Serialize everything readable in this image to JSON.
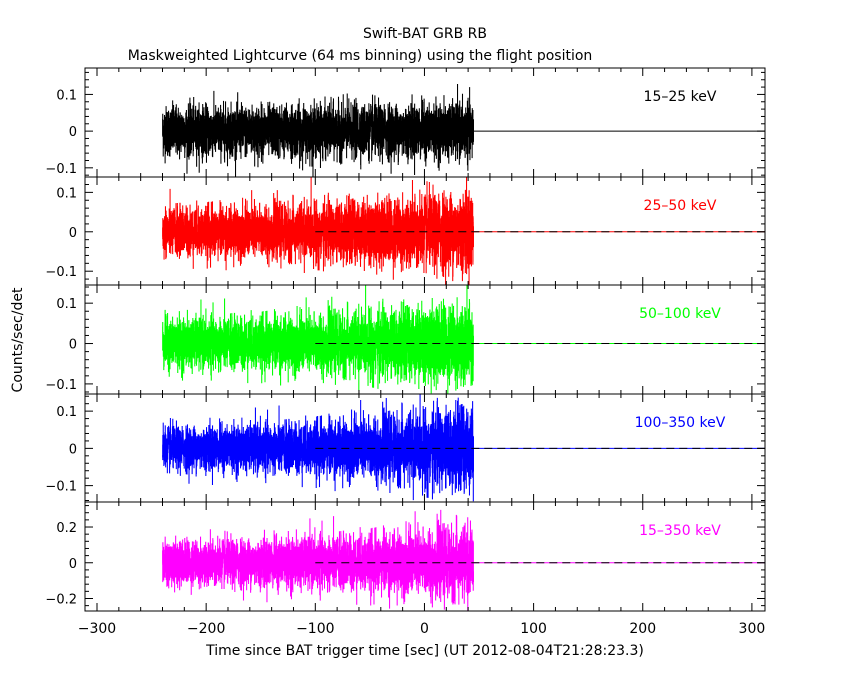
{
  "chart_data": {
    "type": "line",
    "title": "Swift-BAT GRB RB",
    "subtitle": "Maskweighted Lightcurve (64 ms binning) using the flight position",
    "xlabel": "Time since BAT trigger time [sec] (UT 2012-08-04T21:28:23.3)",
    "ylabel": "Counts/sec/det",
    "xlim": [
      -311,
      312
    ],
    "x_ticks": [
      -300,
      -200,
      -100,
      0,
      100,
      200,
      300
    ],
    "x_tick_labels": [
      "−300",
      "−200",
      "−100",
      "0",
      "100",
      "200",
      "300"
    ],
    "bin_size_sec": 0.064,
    "data_start_sec": -240,
    "data_end_sec": 45,
    "reference_dashed_from_sec": -100,
    "panels": [
      {
        "name": "15-25 keV",
        "label": "15–25 keV",
        "color": "#000000",
        "ylim": [
          -0.125,
          0.172
        ],
        "yticks": [
          -0.1,
          0,
          0.1
        ],
        "ytick_labels": [
          "−0.1",
          "0",
          "0.1"
        ],
        "noise_sigma_start": 0.033,
        "noise_sigma_end": 0.036,
        "dashed_reference": false
      },
      {
        "name": "25-50 keV",
        "label": "25–50 keV",
        "color": "#ff0000",
        "ylim": [
          -0.135,
          0.139
        ],
        "yticks": [
          -0.1,
          0,
          0.1
        ],
        "ytick_labels": [
          "−0.1",
          "0",
          "0.1"
        ],
        "noise_sigma_start": 0.03,
        "noise_sigma_end": 0.05,
        "dashed_reference": true
      },
      {
        "name": "50-100 keV",
        "label": "50–100 keV",
        "color": "#00ff00",
        "ylim": [
          -0.125,
          0.145
        ],
        "yticks": [
          -0.1,
          0,
          0.1
        ],
        "ytick_labels": [
          "−0.1",
          "0",
          "0.1"
        ],
        "noise_sigma_start": 0.03,
        "noise_sigma_end": 0.05,
        "dashed_reference": true
      },
      {
        "name": "100-350 keV",
        "label": "100–350 keV",
        "color": "#0000ff",
        "ylim": [
          -0.144,
          0.146
        ],
        "yticks": [
          -0.1,
          0,
          0.1
        ],
        "ytick_labels": [
          "−0.1",
          "0",
          "0.1"
        ],
        "noise_sigma_start": 0.028,
        "noise_sigma_end": 0.055,
        "dashed_reference": true
      },
      {
        "name": "15-350 keV",
        "label": "15–350 keV",
        "color": "#ff00ff",
        "ylim": [
          -0.27,
          0.34
        ],
        "yticks": [
          -0.2,
          0,
          0.2
        ],
        "ytick_labels": [
          "−0.2",
          "0",
          "0.2"
        ],
        "noise_sigma_start": 0.06,
        "noise_sigma_end": 0.1,
        "dashed_reference": true
      }
    ]
  }
}
